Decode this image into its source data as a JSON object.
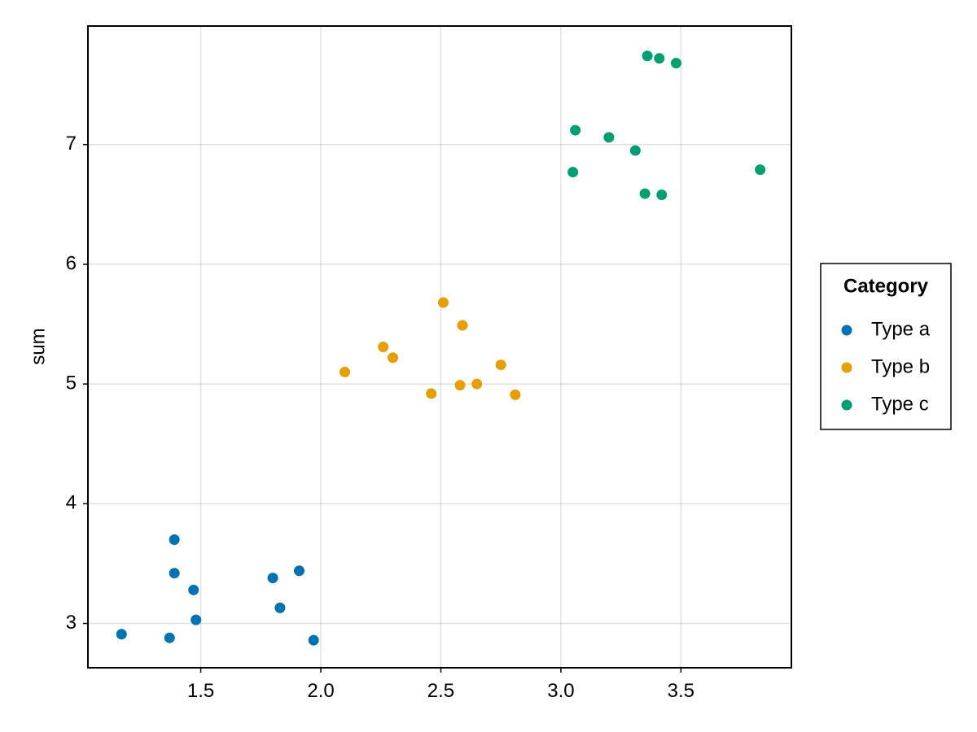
{
  "chart_data": {
    "type": "scatter",
    "title": "",
    "xlabel": "",
    "ylabel": "sum",
    "xlim": [
      1.03,
      3.96
    ],
    "ylim": [
      2.63,
      7.99
    ],
    "xticks": [
      1.5,
      2.0,
      2.5,
      3.0,
      3.5
    ],
    "xtick_labels": [
      "1.5",
      "2.0",
      "2.5",
      "3.0",
      "3.5"
    ],
    "yticks": [
      3,
      4,
      5,
      6,
      7
    ],
    "ytick_labels": [
      "3",
      "4",
      "5",
      "6",
      "7"
    ],
    "grid": true,
    "legend": {
      "title": "Category",
      "position": "right"
    },
    "series": [
      {
        "name": "Type a",
        "color": "#0072b2",
        "points": [
          [
            1.17,
            2.91
          ],
          [
            1.37,
            2.88
          ],
          [
            1.39,
            3.7
          ],
          [
            1.39,
            3.42
          ],
          [
            1.47,
            3.28
          ],
          [
            1.48,
            3.03
          ],
          [
            1.8,
            3.38
          ],
          [
            1.83,
            3.13
          ],
          [
            1.91,
            3.44
          ],
          [
            1.97,
            2.86
          ]
        ]
      },
      {
        "name": "Type b",
        "color": "#e69f00",
        "points": [
          [
            2.1,
            5.1
          ],
          [
            2.26,
            5.31
          ],
          [
            2.3,
            5.22
          ],
          [
            2.46,
            4.92
          ],
          [
            2.51,
            5.68
          ],
          [
            2.58,
            4.99
          ],
          [
            2.59,
            5.49
          ],
          [
            2.65,
            5.0
          ],
          [
            2.75,
            5.16
          ],
          [
            2.81,
            4.91
          ]
        ]
      },
      {
        "name": "Type c",
        "color": "#009e73",
        "points": [
          [
            3.05,
            6.77
          ],
          [
            3.06,
            7.12
          ],
          [
            3.2,
            7.06
          ],
          [
            3.31,
            6.95
          ],
          [
            3.35,
            6.59
          ],
          [
            3.36,
            7.74
          ],
          [
            3.41,
            7.72
          ],
          [
            3.42,
            6.58
          ],
          [
            3.48,
            7.68
          ],
          [
            3.83,
            6.79
          ]
        ]
      }
    ]
  }
}
